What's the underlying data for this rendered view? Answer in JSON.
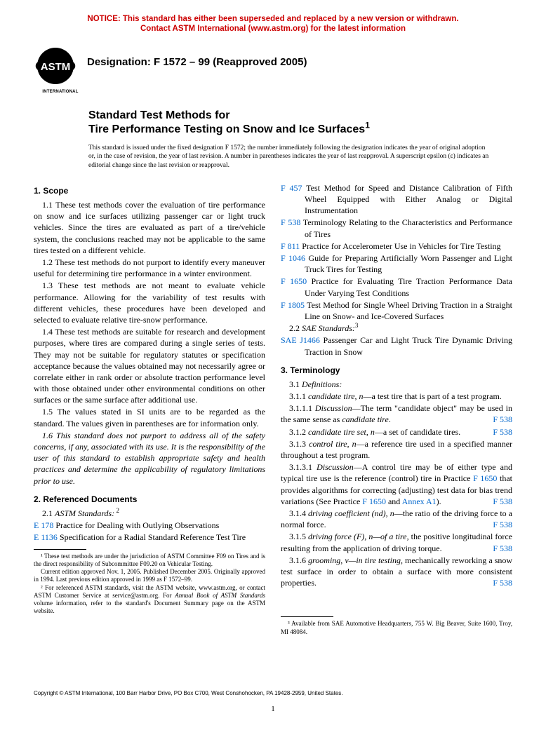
{
  "notice_line1": "NOTICE: This standard has either been superseded and replaced by a new version or withdrawn.",
  "notice_line2": "Contact ASTM International (www.astm.org) for the latest information",
  "logo_international": "INTERNATIONAL",
  "designation": "Designation: F 1572 – 99 (Reapproved 2005)",
  "title_line1": "Standard Test Methods for",
  "title_line2": "Tire Performance Testing on Snow and Ice Surfaces",
  "title_sup": "1",
  "issue_note": "This standard is issued under the fixed designation F 1572; the number immediately following the designation indicates the year of original adoption or, in the case of revision, the year of last revision. A number in parentheses indicates the year of last reapproval. A superscript epsilon (ε) indicates an editorial change since the last revision or reapproval.",
  "sec1_head": "1. Scope",
  "p1_1": "1.1 These test methods cover the evaluation of tire performance on snow and ice surfaces utilizing passenger car or light truck vehicles. Since the tires are evaluated as part of a tire/vehicle system, the conclusions reached may not be applicable to the same tires tested on a different vehicle.",
  "p1_2": "1.2 These test methods do not purport to identify every maneuver useful for determining tire performance in a winter environment.",
  "p1_3": "1.3 These test methods are not meant to evaluate vehicle performance. Allowing for the variability of test results with different vehicles, these procedures have been developed and selected to evaluate relative tire-snow performance.",
  "p1_4": "1.4 These test methods are suitable for research and development purposes, where tires are compared during a single series of tests. They may not be suitable for regulatory statutes or specification acceptance because the values obtained may not necessarily agree or correlate either in rank order or absolute traction performance level with those obtained under other environmental conditions on other surfaces or the same surface after additional use.",
  "p1_5": "1.5 The values stated in SI units are to be regarded as the standard. The values given in parentheses are for information only.",
  "p1_6": "1.6 This standard does not purport to address all of the safety concerns, if any, associated with its use. It is the responsibility of the user of this standard to establish appropriate safety and health practices and determine the applicability of regulatory limitations prior to use.",
  "sec2_head": "2. Referenced Documents",
  "p2_1_lead": "2.1 ",
  "p2_1_ital": "ASTM Standards:",
  "p2_1_sup": " 2",
  "refs_left": [
    {
      "code": "E 178",
      "text": " Practice for Dealing with Outlying Observations"
    },
    {
      "code": "E 1136",
      "text": " Specification for a Radial Standard Reference Test Tire"
    }
  ],
  "refs_right": [
    {
      "code": "F 457",
      "text": " Test Method for Speed and Distance Calibration of Fifth Wheel Equipped with Either Analog or Digital Instrumentation"
    },
    {
      "code": "F 538",
      "text": " Terminology Relating to the Characteristics and Performance of Tires"
    },
    {
      "code": "F 811",
      "text": " Practice for Accelerometer Use in Vehicles for Tire Testing"
    },
    {
      "code": "F 1046",
      "text": " Guide for Preparing Artificially Worn Passenger and Light Truck Tires for Testing"
    },
    {
      "code": "F 1650",
      "text": " Practice for Evaluating Tire Traction Performance Data Under Varying Test Conditions"
    },
    {
      "code": "F 1805",
      "text": " Test Method for Single Wheel Driving Traction in a Straight Line on Snow- and Ice-Covered Surfaces"
    }
  ],
  "p2_2_lead": "2.2 ",
  "p2_2_ital": "SAE Standards:",
  "p2_2_sup": "3",
  "sae_code": "SAE J1466",
  "sae_text": " Passenger Car and Light Truck Tire Dynamic Driving Traction in Snow",
  "sec3_head": "3. Terminology",
  "p3_1_lead": "3.1 ",
  "p3_1_ital": "Definitions:",
  "t311_a": "3.1.1 ",
  "t311_b": "candidate tire",
  "t311_c": ", ",
  "t311_d": "n",
  "t311_e": "—a test tire that is part of a test program.",
  "t3111_a": "3.1.1.1 ",
  "t3111_b": "Discussion",
  "t3111_c": "—The term \"candidate object\" may be used in the same sense as ",
  "t3111_d": "candidate tire",
  "t3111_e": ".",
  "t312_a": "3.1.2 ",
  "t312_b": "candidate tire set",
  "t312_c": ", ",
  "t312_d": "n",
  "t312_e": "—a set of candidate tires.",
  "t313_a": "3.1.3 ",
  "t313_b": "control tire",
  "t313_c": ", ",
  "t313_d": "n",
  "t313_e": "—a reference tire used in a specified manner throughout a test program.",
  "t3131_a": "3.1.3.1 ",
  "t3131_b": "Discussion",
  "t3131_c": "—A control tire may be of either type and typical tire use is the reference (control) tire in Practice ",
  "t3131_d": "F 1650",
  "t3131_e": " that provides algorithms for correcting (adjusting) test data for bias trend variations (See Practice ",
  "t3131_f": "F 1650",
  "t3131_g": " and ",
  "t3131_h": "Annex A1",
  "t3131_i": ").",
  "t314_a": "3.1.4 ",
  "t314_b": "driving coefficient (nd)",
  "t314_c": ", ",
  "t314_d": "n",
  "t314_e": "—the ratio of the driving force to a normal force.",
  "t315_a": "3.1.5 ",
  "t315_b": "driving force (F)",
  "t315_c": ", ",
  "t315_d": "n—of a tire",
  "t315_e": ", the positive longitudinal force resulting from the application of driving torque.",
  "t316_a": "3.1.6 ",
  "t316_b": "grooming",
  "t316_c": ", ",
  "t316_d": "v—in tire testing",
  "t316_e": ", mechanically reworking a snow test surface in order to obtain a surface with more consistent properties.",
  "f538": "F 538",
  "fn1": "¹ These test methods are under the jurisdiction of ASTM Committee F09 on Tires and is the direct responsibility of Subcommittee F09.20 on Vehicular Testing.",
  "fn1b": "Current edition approved Nov. 1, 2005. Published December 2005. Originally approved in 1994. Last previous edition approved in 1999 as F 1572–99.",
  "fn2a": "² For referenced ASTM standards, visit the ASTM website, www.astm.org, or contact ASTM Customer Service at service@astm.org. For ",
  "fn2b": "Annual Book of ASTM Standards",
  "fn2c": " volume information, refer to the standard's Document Summary page on the ASTM website.",
  "fn3": "³ Available from SAE Automotive Headquarters, 755 W. Big Beaver, Suite 1600, Troy, MI 48084.",
  "copyright": "Copyright © ASTM International, 100 Barr Harbor Drive, PO Box C700, West Conshohocken, PA 19428-2959, United States.",
  "pagenum": "1"
}
